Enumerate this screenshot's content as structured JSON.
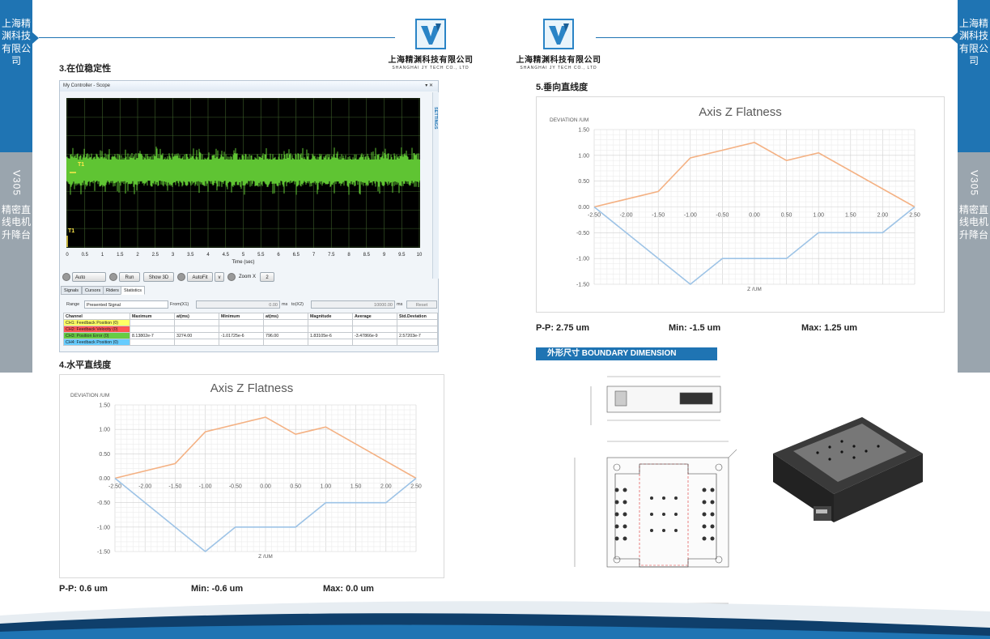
{
  "company": {
    "name": "上海精渊科技有限公司",
    "name_en": "SHANGHAI JY TECH CO., LTD"
  },
  "side": {
    "company_vertical": "上海精渊科技有限公司",
    "model": "V305",
    "product_vertical": "精密直线电机升降台"
  },
  "colors": {
    "brand_blue": "#1f74b3",
    "side_gray": "#9aa5ae",
    "pos_line": "#f4b183",
    "neg_line": "#9dc3e6",
    "signal_green": "#5fc433"
  },
  "sections": {
    "s3": "3.在位稳定性",
    "s4": "4.水平直线度",
    "s5": "5.垂向直线度",
    "boundary": "外形尺寸    BOUNDARY DIMENSION"
  },
  "scope": {
    "window_title": "My Controller - Scope",
    "window_controls": "▾ ✕",
    "settings_label": "SETTINGS",
    "marker_1": "T1",
    "marker_2": "T1",
    "x_ticks": [
      "0",
      "0.5",
      "1",
      "1.5",
      "2",
      "2.5",
      "3",
      "3.5",
      "4",
      "4.5",
      "5",
      "5.5",
      "6",
      "6.5",
      "7",
      "7.5",
      "8",
      "8.5",
      "9",
      "9.5",
      "10"
    ],
    "x_label": "Time (sec)",
    "toolbar": {
      "auto": "Auto",
      "run": "Run",
      "show3d": "Show 3D",
      "autofit": "AutoFit",
      "v": "v",
      "zoom": "Zoom X",
      "zoom_val": "2"
    },
    "tabs": [
      "Signals",
      "Cursors",
      "Riders",
      "Statistics"
    ],
    "range": {
      "label": "Range",
      "mode": "Presented Signal",
      "from_label": "From(X1)",
      "from_val": "0.00",
      "from_unit": "ms",
      "to_label": "to(X2)",
      "to_val": "10000.00",
      "to_unit": "ms",
      "reset": "Reset"
    },
    "table": {
      "headers": [
        "Channel",
        "Maximum",
        "at(ms)",
        "Minimum",
        "at(ms)",
        "Magnitude",
        "Average",
        "Std.Deviation"
      ],
      "rows": [
        {
          "channel": "CH1: Feedback Position (0)",
          "color": "#ffff66",
          "vals": [
            "",
            "",
            "",
            "",
            "",
            "",
            ""
          ]
        },
        {
          "channel": "CH2: Feedback Velocity (0)",
          "color": "#ff5555",
          "vals": [
            "",
            "",
            "",
            "",
            "",
            "",
            ""
          ]
        },
        {
          "channel": "CH3: Position Error (0)",
          "color": "#66cc44",
          "vals": [
            "8.13802e-7",
            "3274.00",
            "-1.01725e-6",
            "796.00",
            "1.83105e-6",
            "-3.47866e-9",
            "2.57203e-7"
          ]
        },
        {
          "channel": "CH4: Feedback Position (0)",
          "color": "#66ccff",
          "vals": [
            "",
            "",
            "",
            "",
            "",
            "",
            ""
          ]
        }
      ]
    }
  },
  "chart_data": [
    {
      "type": "line",
      "title": "Axis Z Flatness",
      "ylabel": "DEVIATION /UM",
      "xlabel": "Z /UM",
      "ylim": [
        -1.5,
        1.5
      ],
      "xlim": [
        -2.5,
        2.5
      ],
      "x_ticks": [
        "-2.50",
        "-2.00",
        "-1.50",
        "-1.00",
        "-0.50",
        "0.00",
        "0.50",
        "1.00",
        "1.50",
        "2.00",
        "2.50"
      ],
      "y_ticks": [
        "1.50",
        "1.00",
        "0.50",
        "0.00",
        "-0.50",
        "-1.00",
        "-1.50"
      ],
      "grid": true,
      "series": [
        {
          "color": "#f4b183",
          "x": [
            -2.5,
            -1.5,
            -1.0,
            0.0,
            0.5,
            1.0,
            2.5
          ],
          "y": [
            0.0,
            0.3,
            0.95,
            1.25,
            0.9,
            1.05,
            0.0
          ]
        },
        {
          "color": "#9dc3e6",
          "x": [
            -2.5,
            -1.0,
            -0.5,
            0.5,
            1.0,
            2.0,
            2.5
          ],
          "y": [
            0.0,
            -1.5,
            -1.0,
            -1.0,
            -0.5,
            -0.5,
            0.0
          ]
        }
      ]
    },
    {
      "type": "line",
      "title": "Axis Z Flatness",
      "ylabel": "DEVIATION /UM",
      "xlabel": "Z /UM",
      "ylim": [
        -1.5,
        1.5
      ],
      "xlim": [
        -2.5,
        2.5
      ],
      "x_ticks": [
        "-2.50",
        "-2.00",
        "-1.50",
        "-1.00",
        "-0.50",
        "0.00",
        "0.50",
        "1.00",
        "1.50",
        "2.00",
        "2.50"
      ],
      "y_ticks": [
        "1.50",
        "1.00",
        "0.50",
        "0.00",
        "-0.50",
        "-1.00",
        "-1.50"
      ],
      "grid": true,
      "series": [
        {
          "color": "#f4b183",
          "x": [
            -2.5,
            -1.5,
            -1.0,
            0.0,
            0.5,
            1.0,
            2.5
          ],
          "y": [
            0.0,
            0.3,
            0.95,
            1.25,
            0.9,
            1.05,
            0.0
          ]
        },
        {
          "color": "#9dc3e6",
          "x": [
            -2.5,
            -1.0,
            -0.5,
            0.5,
            1.0,
            2.0,
            2.5
          ],
          "y": [
            0.0,
            -1.5,
            -1.0,
            -1.0,
            -0.5,
            -0.5,
            0.0
          ]
        }
      ]
    }
  ],
  "stats_h": {
    "pp": "P-P: 0.6 um",
    "min": "Min: -0.6 um",
    "max": "Max: 0.0 um"
  },
  "stats_v": {
    "pp": "P-P: 2.75 um",
    "min": "Min: -1.5 um",
    "max": "Max: 1.25 um"
  }
}
